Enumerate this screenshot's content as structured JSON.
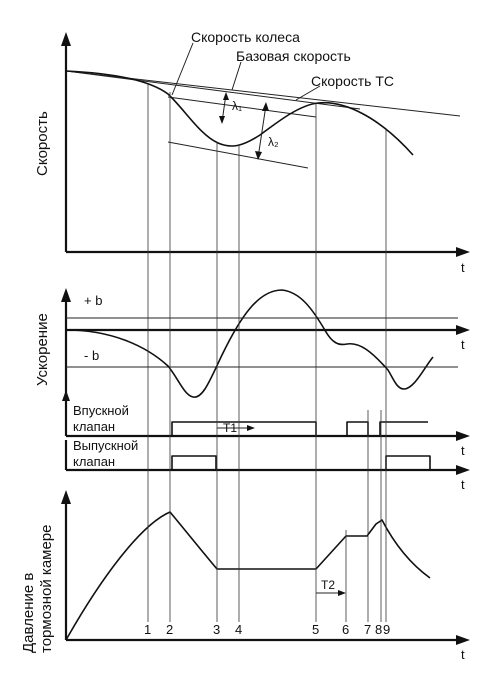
{
  "labels": {
    "wheel_speed": "Скорость колеса",
    "base_speed": "Базовая скорость",
    "vehicle_speed": "Скорость ТС",
    "lambda1": "λ₁",
    "lambda2": "λ₂",
    "speed_axis": "Скорость",
    "accel_axis": "Ускорение",
    "plus_b": "+ b",
    "minus_b": "- b",
    "inlet_valve_line1": "Впускной",
    "inlet_valve_line2": "клапан",
    "outlet_valve_line1": "Выпускной",
    "outlet_valve_line2": "клапан",
    "pressure_axis_line1": "Давление в",
    "pressure_axis_line2": "тормозной камере",
    "t1": "T1",
    "t2": "T2",
    "time": "t"
  },
  "markers": [
    "1",
    "2",
    "3",
    "4",
    "5",
    "6",
    "7",
    "8",
    "9"
  ],
  "colors": {
    "ink": "#111111",
    "background": "#ffffff"
  }
}
